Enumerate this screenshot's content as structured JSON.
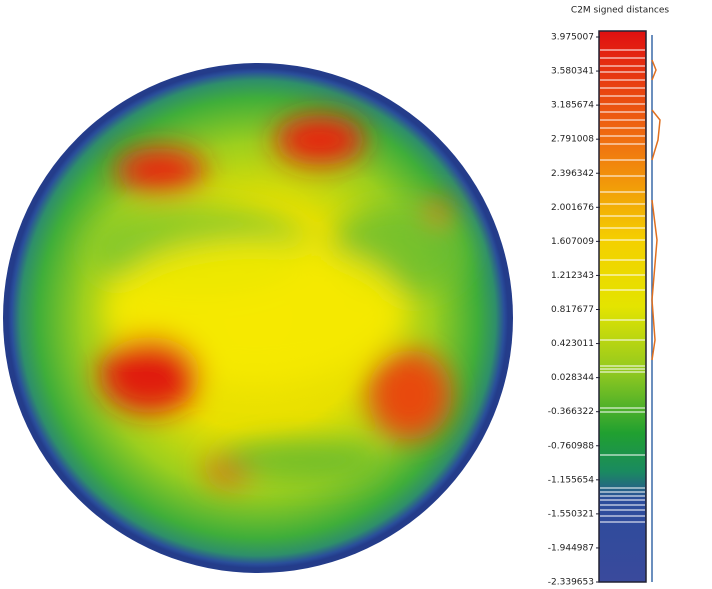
{
  "scale": {
    "title": "C2M signed distances",
    "ticks": [
      3.975007,
      3.580341,
      3.185674,
      2.791008,
      2.396342,
      2.001676,
      1.607009,
      1.212343,
      0.817677,
      0.423011,
      0.028344,
      -0.366322,
      -0.760988,
      -1.155654,
      -1.550321,
      -1.944987,
      -2.339653
    ]
  }
}
